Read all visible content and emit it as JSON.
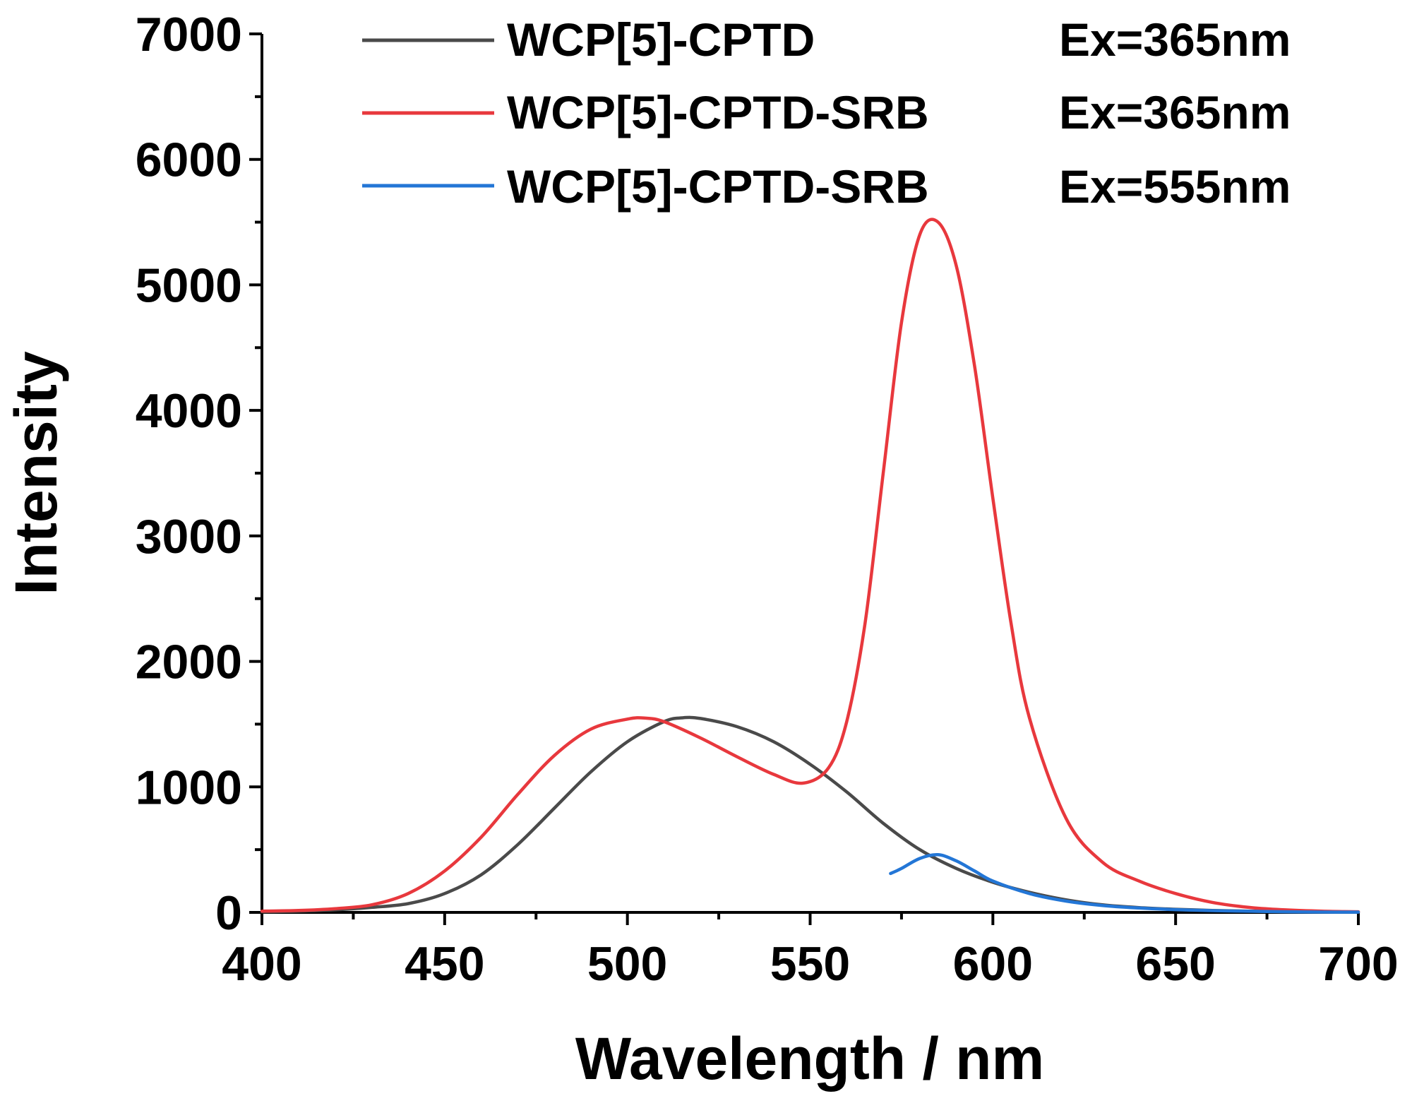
{
  "chart_data": {
    "type": "line",
    "title": "",
    "xlabel": "Wavelength / nm",
    "ylabel": "Intensity",
    "xlim": [
      400,
      700
    ],
    "ylim": [
      0,
      7000
    ],
    "x_ticks": [
      400,
      450,
      500,
      550,
      600,
      650,
      700
    ],
    "y_ticks": [
      0,
      1000,
      2000,
      3000,
      4000,
      5000,
      6000,
      7000
    ],
    "grid": false,
    "legend_position": "top-right",
    "series": [
      {
        "name": "WCP[5]-CPTD",
        "condition": "Ex=365nm",
        "color": "#4a4a4a",
        "x": [
          400,
          410,
          420,
          430,
          440,
          450,
          460,
          470,
          480,
          490,
          500,
          510,
          515,
          520,
          530,
          540,
          550,
          560,
          570,
          580,
          590,
          600,
          610,
          620,
          630,
          640,
          650,
          660,
          670,
          680,
          690,
          700
        ],
        "y": [
          5,
          10,
          20,
          40,
          70,
          150,
          300,
          540,
          830,
          1120,
          1360,
          1520,
          1550,
          1545,
          1480,
          1360,
          1180,
          960,
          710,
          500,
          350,
          240,
          160,
          100,
          60,
          38,
          25,
          16,
          10,
          6,
          3,
          2
        ]
      },
      {
        "name": "WCP[5]-CPTD-SRB",
        "condition": "Ex=365nm",
        "color": "#e8383d",
        "x": [
          400,
          410,
          420,
          430,
          440,
          450,
          460,
          470,
          480,
          490,
          500,
          505,
          510,
          520,
          530,
          540,
          548,
          555,
          560,
          565,
          570,
          575,
          580,
          585,
          590,
          595,
          600,
          605,
          610,
          620,
          630,
          640,
          650,
          660,
          670,
          680,
          690,
          700
        ],
        "y": [
          10,
          15,
          30,
          60,
          150,
          330,
          600,
          940,
          1250,
          1460,
          1540,
          1548,
          1520,
          1390,
          1240,
          1100,
          1030,
          1150,
          1520,
          2300,
          3500,
          4700,
          5400,
          5500,
          5150,
          4350,
          3300,
          2300,
          1550,
          750,
          400,
          250,
          150,
          80,
          40,
          20,
          10,
          5
        ]
      },
      {
        "name": "WCP[5]-CPTD-SRB",
        "condition": "Ex=555nm",
        "color": "#2376d6",
        "x": [
          572,
          575,
          580,
          585,
          590,
          595,
          600,
          610,
          620,
          630,
          640,
          650,
          660,
          670,
          680,
          690,
          700
        ],
        "y": [
          310,
          350,
          430,
          460,
          410,
          330,
          250,
          150,
          90,
          55,
          35,
          22,
          14,
          9,
          5,
          3,
          2
        ]
      }
    ]
  }
}
